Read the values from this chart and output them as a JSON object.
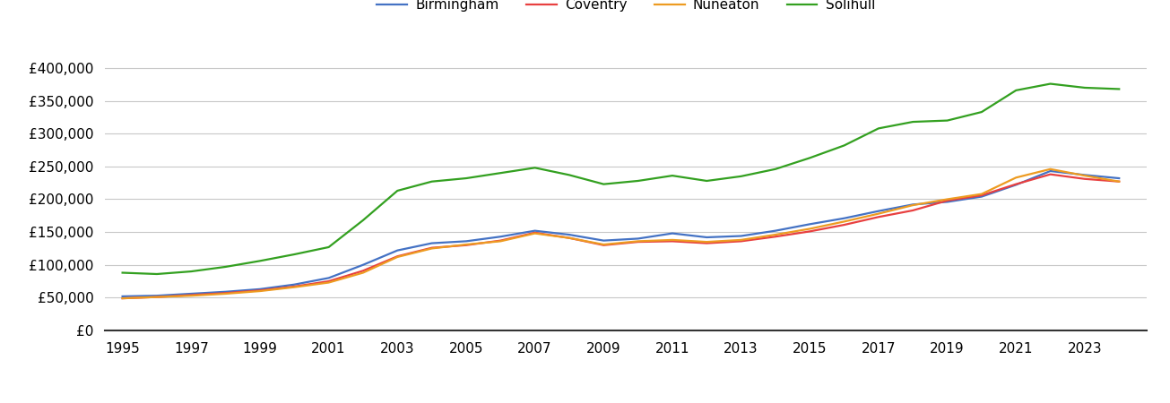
{
  "years": [
    1995,
    1996,
    1997,
    1998,
    1999,
    2000,
    2001,
    2002,
    2003,
    2004,
    2005,
    2006,
    2007,
    2008,
    2009,
    2010,
    2011,
    2012,
    2013,
    2014,
    2015,
    2016,
    2017,
    2018,
    2019,
    2020,
    2021,
    2022,
    2023,
    2024
  ],
  "Birmingham": [
    52000,
    53000,
    56000,
    59000,
    63000,
    70000,
    80000,
    100000,
    122000,
    133000,
    136000,
    143000,
    152000,
    146000,
    137000,
    140000,
    148000,
    142000,
    144000,
    152000,
    162000,
    171000,
    182000,
    192000,
    196000,
    204000,
    222000,
    243000,
    237000,
    232000
  ],
  "Coventry": [
    49000,
    51000,
    54000,
    57000,
    61000,
    67000,
    75000,
    91000,
    113000,
    126000,
    130000,
    137000,
    149000,
    141000,
    130000,
    135000,
    136000,
    133000,
    136000,
    143000,
    151000,
    161000,
    173000,
    183000,
    198000,
    206000,
    223000,
    238000,
    231000,
    227000
  ],
  "Nuneaton": [
    49000,
    51000,
    53000,
    56000,
    60000,
    66000,
    73000,
    88000,
    112000,
    125000,
    131000,
    136000,
    148000,
    141000,
    131000,
    136000,
    138000,
    135000,
    138000,
    146000,
    155000,
    166000,
    178000,
    191000,
    200000,
    208000,
    233000,
    246000,
    236000,
    227000
  ],
  "Solihull": [
    88000,
    86000,
    90000,
    97000,
    106000,
    116000,
    127000,
    168000,
    213000,
    227000,
    232000,
    240000,
    248000,
    237000,
    223000,
    228000,
    236000,
    228000,
    235000,
    246000,
    263000,
    282000,
    308000,
    318000,
    320000,
    333000,
    366000,
    376000,
    370000,
    368000
  ],
  "colors": {
    "Birmingham": "#4472C4",
    "Coventry": "#E84040",
    "Nuneaton": "#ED9B21",
    "Solihull": "#33A020"
  },
  "yticks": [
    0,
    50000,
    100000,
    150000,
    200000,
    250000,
    300000,
    350000,
    400000
  ],
  "ylim": [
    0,
    430000
  ],
  "xlim_left": 1994.5,
  "xlim_right": 2024.8,
  "xtick_years": [
    1995,
    1997,
    1999,
    2001,
    2003,
    2005,
    2007,
    2009,
    2011,
    2013,
    2015,
    2017,
    2019,
    2021,
    2023
  ],
  "background_color": "#ffffff",
  "grid_color": "#c8c8c8",
  "linewidth": 1.6,
  "legend_fontsize": 11,
  "tick_fontsize": 11
}
